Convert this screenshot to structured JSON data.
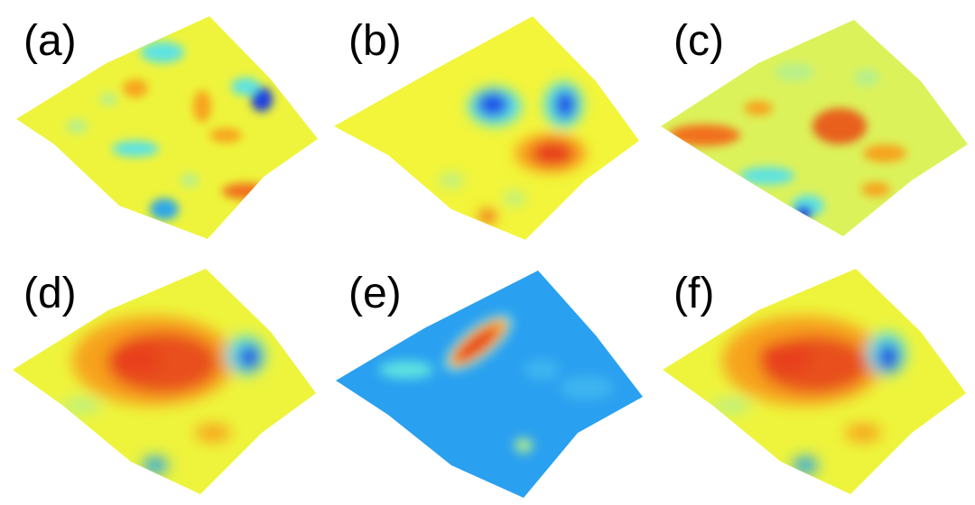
{
  "figure": {
    "panels": [
      {
        "id": "a",
        "label": "(a)",
        "colormap": "jet"
      },
      {
        "id": "b",
        "label": "(b)",
        "colormap": "jet"
      },
      {
        "id": "c",
        "label": "(c)",
        "colormap": "jet"
      },
      {
        "id": "d",
        "label": "(d)",
        "colormap": "jet"
      },
      {
        "id": "e",
        "label": "(e)",
        "colormap": "jet"
      },
      {
        "id": "f",
        "label": "(f)",
        "colormap": "jet"
      }
    ],
    "colors": {
      "dark_blue": "#0a2ad8",
      "blue": "#1e8cf5",
      "cyan": "#5ee3e0",
      "light_green": "#b8f08a",
      "yellow": "#f6f53a",
      "orange": "#f7a31c",
      "red": "#e8401a",
      "background": "#ffffff"
    }
  }
}
